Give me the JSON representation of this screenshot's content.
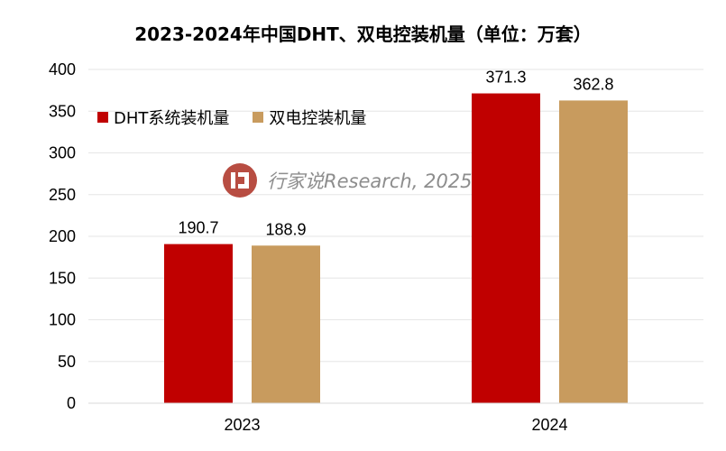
{
  "chart_data": {
    "type": "bar",
    "title": "2023-2024年中国DHT、双电控装机量（单位：万套）",
    "categories": [
      "2023",
      "2024"
    ],
    "series": [
      {
        "name": "DHT系统装机量",
        "values": [
          190.7,
          371.3
        ],
        "color": "#c00000"
      },
      {
        "name": "双电控装机量",
        "values": [
          188.9,
          362.8
        ],
        "color": "#c89b5e"
      }
    ],
    "data_labels": [
      [
        "190.7",
        "371.3"
      ],
      [
        "188.9",
        "362.8"
      ]
    ],
    "ylim": [
      0,
      400
    ],
    "y_ticks": [
      0,
      50,
      100,
      150,
      200,
      250,
      300,
      350,
      400
    ],
    "grid": true,
    "legend_position": "top-left"
  },
  "watermark": {
    "text": "行家说Research, 2025",
    "logo": "hangjiashuo-logo",
    "logo_color": "#b03a2e"
  }
}
